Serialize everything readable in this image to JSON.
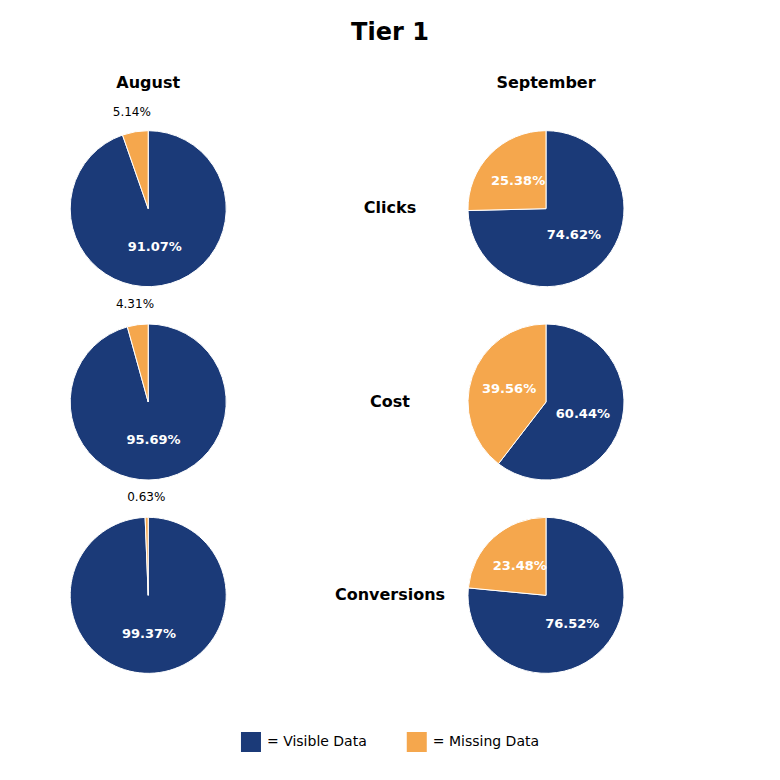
{
  "chart_data": {
    "type": "pie",
    "title": "Tier 1",
    "columns": [
      "August",
      "September"
    ],
    "series": [
      {
        "name": "= Visible Data",
        "color": "#1b3a78"
      },
      {
        "name": "= Missing Data",
        "color": "#f5a74d"
      }
    ],
    "rows": [
      {
        "name": "Clicks",
        "values": [
          [
            91.07,
            5.14
          ],
          [
            74.62,
            25.38
          ]
        ],
        "value_labels": [
          [
            "91.07%",
            "5.14%"
          ],
          [
            "74.62%",
            "25.38%"
          ]
        ]
      },
      {
        "name": "Cost",
        "values": [
          [
            95.69,
            4.31
          ],
          [
            60.44,
            39.56
          ]
        ],
        "value_labels": [
          [
            "95.69%",
            "4.31%"
          ],
          [
            "60.44%",
            "39.56%"
          ]
        ]
      },
      {
        "name": "Conversions",
        "values": [
          [
            99.37,
            0.63
          ],
          [
            76.52,
            23.48
          ]
        ],
        "value_labels": [
          [
            "99.37%",
            "0.63%"
          ],
          [
            "76.52%",
            "23.48%"
          ]
        ]
      }
    ],
    "data_labels": true
  }
}
